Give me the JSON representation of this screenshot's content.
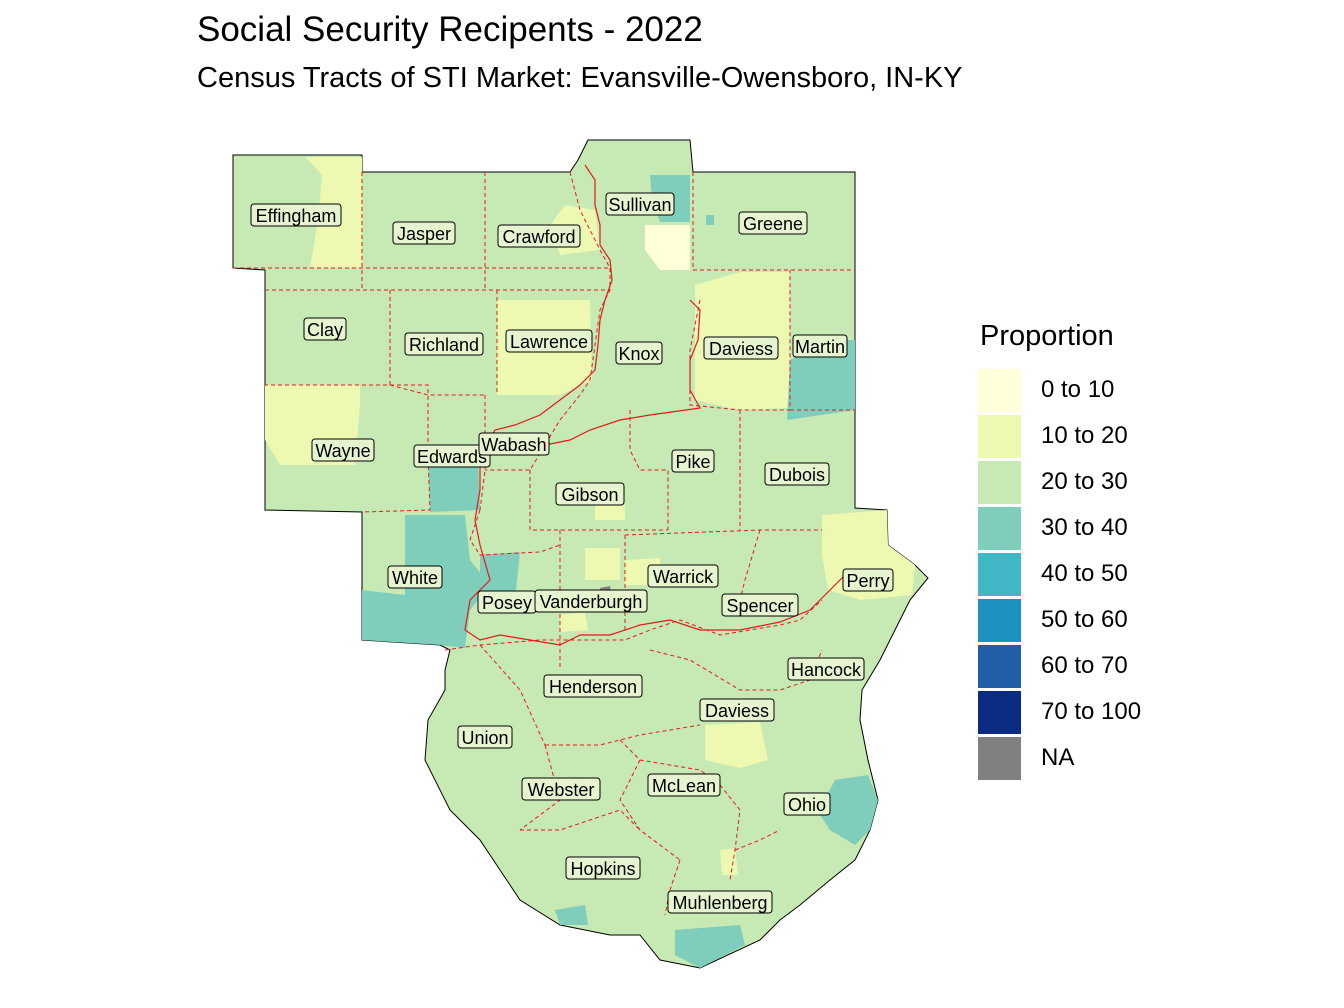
{
  "title": "Social Security Recipents - 2022",
  "subtitle": "Census Tracts of STI Market: Evansville-Owensboro, IN-KY",
  "legend": {
    "title": "Proportion",
    "items": [
      {
        "label": "0 to 10",
        "color": "#ffffd9"
      },
      {
        "label": "10 to 20",
        "color": "#edf8b1"
      },
      {
        "label": "20 to 30",
        "color": "#c7e9b4"
      },
      {
        "label": "30 to 40",
        "color": "#7fcdbb"
      },
      {
        "label": "40 to 50",
        "color": "#41b6c4"
      },
      {
        "label": "50 to 60",
        "color": "#1d91c0"
      },
      {
        "label": "60 to 70",
        "color": "#225ea8"
      },
      {
        "label": "70 to 100",
        "color": "#0c2c84"
      },
      {
        "label": "NA",
        "color": "#808080"
      }
    ]
  },
  "counties": {
    "effingham": "Effingham",
    "jasper": "Jasper",
    "crawford": "Crawford",
    "sullivan": "Sullivan",
    "greene": "Greene",
    "clay": "Clay",
    "richland": "Richland",
    "lawrence": "Lawrence",
    "knox": "Knox",
    "daviess_in": "Daviess",
    "martin": "Martin",
    "wayne": "Wayne",
    "edwards": "Edwards",
    "wabash": "Wabash",
    "pike": "Pike",
    "dubois": "Dubois",
    "gibson": "Gibson",
    "white": "White",
    "posey": "Posey",
    "vanderburgh": "Vanderburgh",
    "warrick": "Warrick",
    "spencer": "Spencer",
    "perry": "Perry",
    "hancock": "Hancock",
    "henderson": "Henderson",
    "daviess_ky": "Daviess",
    "union": "Union",
    "webster": "Webster",
    "mclean": "McLean",
    "ohio": "Ohio",
    "hopkins": "Hopkins",
    "muhlenberg": "Muhlenberg"
  }
}
